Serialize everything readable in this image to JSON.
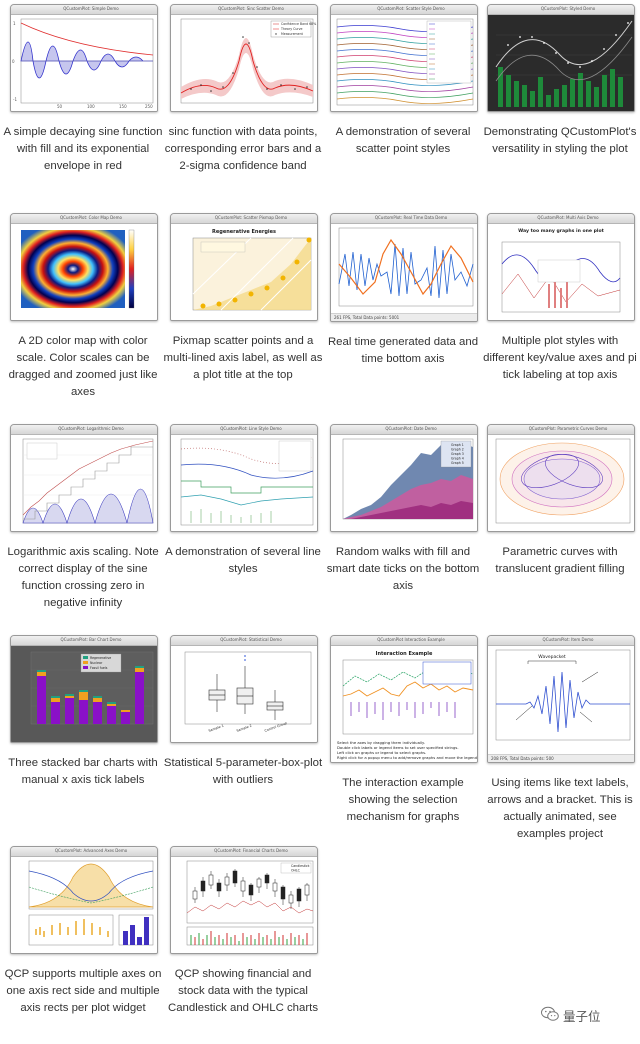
{
  "cards": [
    {
      "title": "QCustomPlot: Simple Demo",
      "caption": "A simple decaying sine function with fill and its exponential envelope in red"
    },
    {
      "title": "QCustomPlot: Sinc Scatter Demo",
      "caption": "sinc function with data points, corresponding error bars and a 2-sigma confidence band"
    },
    {
      "title": "QCustomPlot: Scatter Style Demo",
      "caption": "A demonstration of several scatter point styles"
    },
    {
      "title": "QCustomPlot: Styled Demo",
      "caption": "Demonstrating QCustomPlot's versatility in styling the plot"
    },
    {
      "title": "QCustomPlot: Color Map Demo",
      "caption": "A 2D color map with color scale. Color scales can be dragged and zoomed just like axes"
    },
    {
      "title": "QCustomPlot: Scatter Pixmap Demo",
      "caption": "Pixmap scatter points and a multi-lined axis label, as well as a plot title at the top"
    },
    {
      "title": "QCustomPlot: Real Time Data Demo",
      "caption": "Real time generated data and time bottom axis",
      "status": "261 FPS, Total Data points: 5001"
    },
    {
      "title": "QCustomPlot: Multi Axis Demo",
      "caption": "Multiple plot styles with different key/value axes and pi tick labeling at top axis"
    },
    {
      "title": "QCustomPlot: Logarithmic Demo",
      "caption": "Logarithmic axis scaling. Note correct display of the sine function crossing zero in negative infinity"
    },
    {
      "title": "QCustomPlot: Line Style Demo",
      "caption": "A demonstration of several line styles"
    },
    {
      "title": "QCustomPlot: Date Demo",
      "caption": "Random walks with fill and smart date ticks on the bottom axis"
    },
    {
      "title": "QCustomPlot: Parametric Curves Demo",
      "caption": "Parametric curves with translucent gradient filling"
    },
    {
      "title": "QCustomPlot: Bar Chart Demo",
      "caption": "Three stacked bar charts with manual x axis tick labels"
    },
    {
      "title": "QCustomPlot: Statistical Demo",
      "caption": "Statistical 5-parameter-box-plot with outliers"
    },
    {
      "title": "QCustomPlot Interaction Example",
      "caption": "The interaction example showing the selection mechanism for graphs"
    },
    {
      "title": "QCustomPlot: Item Demo",
      "caption": "Using items like text labels, arrows and a bracket. This is actually animated, see examples project",
      "status": "208 FPS, Total Data points: 500"
    },
    {
      "title": "QCustomPlot: Advanced Axes Demo",
      "caption": "QCP supports multiple axes on one axis rect side and multiple axis rects per plot widget"
    },
    {
      "title": "QCustomPlot: Financial Charts Demo",
      "caption": "QCP showing financial and stock data with the typical Candlestick and OHLC charts"
    }
  ],
  "plot_text": {
    "styled_title": "",
    "pixmap_title": "Regenerative Energies",
    "multi_title": "Way too many graphs in one plot",
    "interaction_title": "Interaction Example",
    "item_label": "Wavepacket",
    "sinc_legend": [
      "Confidence Band 68%",
      "Theory Curve",
      "Measurement"
    ],
    "bar_legend": [
      "Regenerative",
      "Nuclear",
      "Fossil fuels"
    ],
    "box_ticks": [
      "Sample 1",
      "Sample 2",
      "Control Group"
    ],
    "ohlc_legend": [
      "Candlestick",
      "OHLC"
    ],
    "date_legend": [
      "Graph 1",
      "Graph 2",
      "Graph 3",
      "Graph 4",
      "Graph 5"
    ]
  },
  "watermark": {
    "text": "量子位",
    "icon": "wechat-icon"
  },
  "colors": {
    "accent_blue": "#1f4ea8",
    "accent_red": "#d62020",
    "caption": "#333333"
  }
}
